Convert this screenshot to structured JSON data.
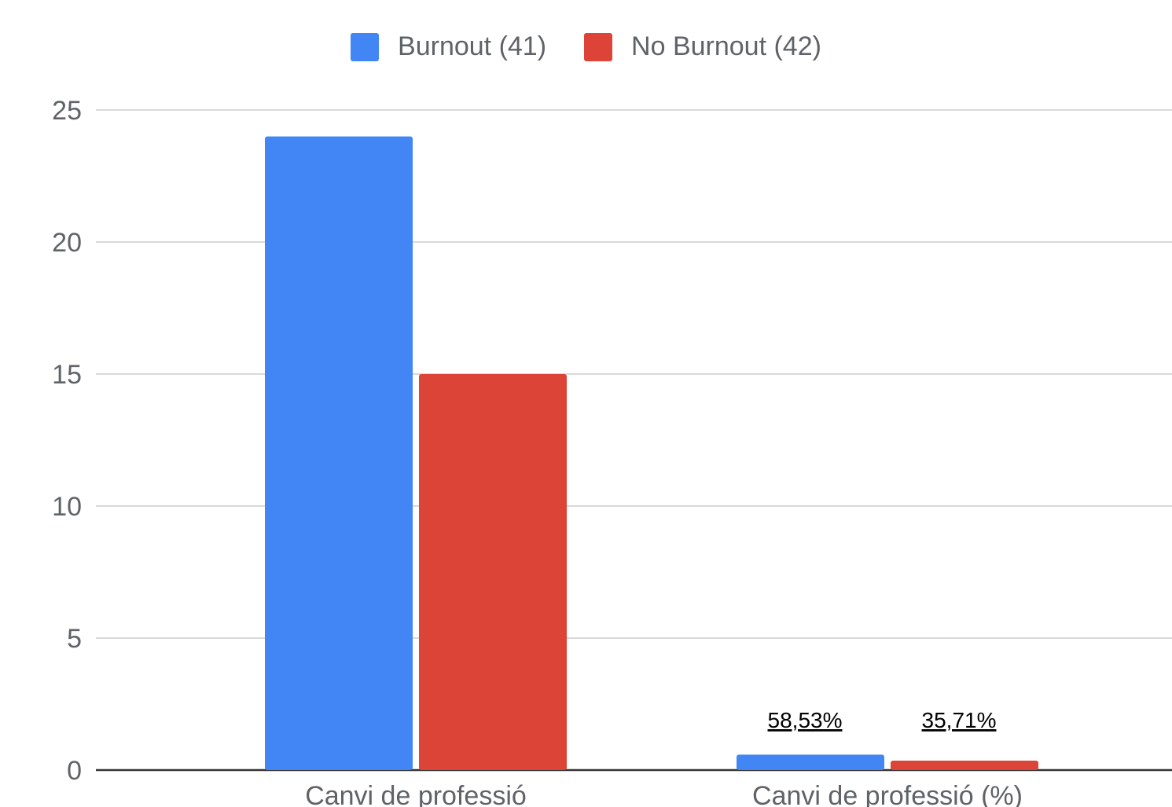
{
  "chart_data": {
    "type": "bar",
    "categories": [
      "Canvi de professió",
      "Canvi de professió (%)"
    ],
    "series": [
      {
        "name": "Burnout (41)",
        "color": "#4285f4",
        "values": [
          24,
          0.5853
        ],
        "data_labels": [
          "",
          "58,53%"
        ]
      },
      {
        "name": "No Burnout (42)",
        "color": "#db4437",
        "values": [
          15,
          0.3571
        ],
        "data_labels": [
          "",
          "35,71%"
        ]
      }
    ],
    "ylim": [
      0,
      25
    ],
    "yticks": [
      "0",
      "5",
      "10",
      "15",
      "20",
      "25"
    ],
    "ytick_values": [
      0,
      5,
      10,
      15,
      20,
      25
    ],
    "grid": true,
    "legend_position": "top-center",
    "xlabel": "",
    "ylabel": ""
  }
}
